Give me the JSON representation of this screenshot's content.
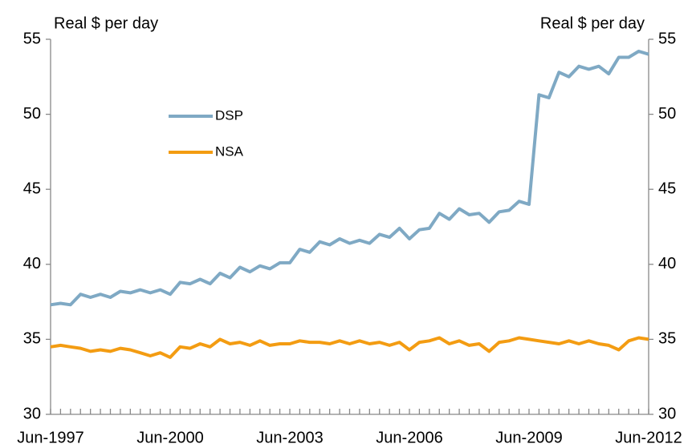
{
  "chart_data": {
    "type": "line",
    "y_label": "Real $ per day",
    "y2_label": "Real $ per day",
    "categories": [
      "Jun-1997",
      null,
      null,
      null,
      null,
      null,
      null,
      null,
      null,
      null,
      null,
      null,
      "Jun-2000",
      null,
      null,
      null,
      null,
      null,
      null,
      null,
      null,
      null,
      null,
      null,
      "Jun-2003",
      null,
      null,
      null,
      null,
      null,
      null,
      null,
      null,
      null,
      null,
      null,
      "Jun-2006",
      null,
      null,
      null,
      null,
      null,
      null,
      null,
      null,
      null,
      null,
      null,
      "Jun-2009",
      null,
      null,
      null,
      null,
      null,
      null,
      null,
      null,
      null,
      null,
      null,
      "Jun-2012"
    ],
    "series": [
      {
        "name": "DSP",
        "color": "#7fa9c4",
        "values": [
          37.3,
          37.4,
          37.3,
          38.0,
          37.8,
          38.0,
          37.8,
          38.2,
          38.1,
          38.3,
          38.1,
          38.3,
          38.0,
          38.8,
          38.7,
          39.0,
          38.7,
          39.4,
          39.1,
          39.8,
          39.5,
          39.9,
          39.7,
          40.1,
          40.1,
          41.0,
          40.8,
          41.5,
          41.3,
          41.7,
          41.4,
          41.6,
          41.4,
          42.0,
          41.8,
          42.4,
          41.7,
          42.3,
          42.4,
          43.4,
          43.0,
          43.7,
          43.3,
          43.4,
          42.8,
          43.5,
          43.6,
          44.2,
          44.0,
          51.3,
          51.1,
          52.8,
          52.5,
          53.2,
          53.0,
          53.2,
          52.7,
          53.8,
          53.8,
          54.2,
          54.0
        ]
      },
      {
        "name": "NSA",
        "color": "#f39c12",
        "axis": "y2",
        "values": [
          34.5,
          34.6,
          34.5,
          34.4,
          34.2,
          34.3,
          34.2,
          34.4,
          34.3,
          34.1,
          33.9,
          34.1,
          33.8,
          34.5,
          34.4,
          34.7,
          34.5,
          35.0,
          34.7,
          34.8,
          34.6,
          34.9,
          34.6,
          34.7,
          34.7,
          34.9,
          34.8,
          34.8,
          34.7,
          34.9,
          34.7,
          34.9,
          34.7,
          34.8,
          34.6,
          34.8,
          34.3,
          34.8,
          34.9,
          35.1,
          34.7,
          34.9,
          34.6,
          34.7,
          34.2,
          34.8,
          34.9,
          35.1,
          35.0,
          34.9,
          34.8,
          34.7,
          34.9,
          34.7,
          34.9,
          34.7,
          34.6,
          34.3,
          34.9,
          35.1,
          35.0
        ]
      }
    ],
    "ylim": [
      30,
      55
    ],
    "yticks": [
      30,
      35,
      40,
      45,
      50,
      55
    ],
    "y2lim": [
      30,
      55
    ],
    "y2ticks": [
      30,
      35,
      40,
      45,
      50,
      55
    ],
    "grid": false
  }
}
